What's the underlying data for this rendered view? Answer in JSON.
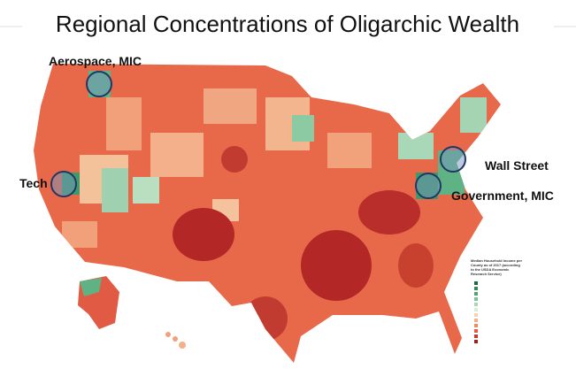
{
  "title": "Regional Concentrations of Oligarchic Wealth",
  "annotations": [
    {
      "label": "Aerospace, MIC"
    },
    {
      "label": "Tech"
    },
    {
      "label": "Wall Street"
    },
    {
      "label": "Government, MIC"
    }
  ],
  "legend": {
    "title": "Median Household Income per County as of 2017 (according to the USDA Economic Research Service)"
  }
}
